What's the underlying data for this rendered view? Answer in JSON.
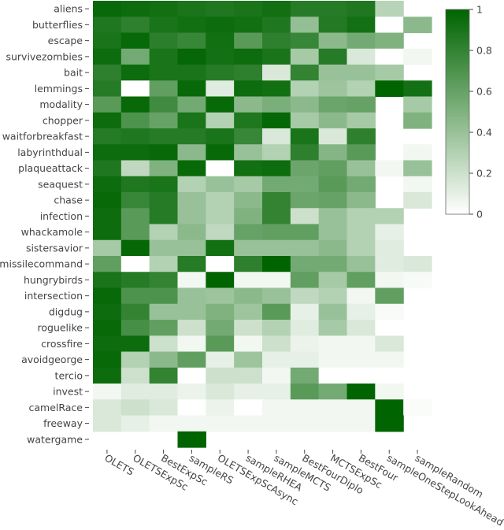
{
  "chart_data": {
    "type": "heatmap",
    "x_categories": [
      "OLETS",
      "OLETSExpSc",
      "BestExpSc",
      "sampleRS",
      "OLETSExpScAsync",
      "sampleRHEA",
      "sampleMCTS",
      "BestFourDiplo",
      "MCTSExpSc",
      "BestFour",
      "sampleOneStepLookAhead",
      "sampleRandom"
    ],
    "y_categories": [
      "aliens",
      "butterflies",
      "escape",
      "survivezombies",
      "bait",
      "lemmings",
      "modality",
      "chopper",
      "waitforbreakfast",
      "labyrinthdual",
      "plaqueattack",
      "seaquest",
      "chase",
      "infection",
      "whackamole",
      "sistersavior",
      "missilecommand",
      "hungrybirds",
      "intersection",
      "digdug",
      "roguelike",
      "crossfire",
      "avoidgeorge",
      "tercio",
      "invest",
      "camelRace",
      "freeway",
      "watergame"
    ],
    "z": [
      [
        0.97,
        0.95,
        0.93,
        0.9,
        0.88,
        0.9,
        0.93,
        0.85,
        0.85,
        0.88,
        0.28,
        null
      ],
      [
        0.88,
        0.82,
        0.9,
        0.93,
        0.95,
        0.93,
        0.88,
        0.42,
        0.86,
        0.92,
        0.0,
        0.45
      ],
      [
        0.9,
        0.97,
        0.83,
        0.78,
        0.93,
        0.65,
        0.82,
        0.78,
        0.45,
        0.55,
        0.5,
        null
      ],
      [
        0.95,
        0.55,
        0.9,
        0.98,
        0.92,
        0.95,
        0.9,
        0.35,
        0.85,
        0.15,
        0.0,
        0.05
      ],
      [
        0.82,
        0.95,
        0.9,
        0.9,
        0.85,
        0.82,
        0.15,
        0.8,
        0.4,
        0.4,
        0.35,
        null
      ],
      [
        0.85,
        0.0,
        0.62,
        0.97,
        0.12,
        0.95,
        0.93,
        0.3,
        0.38,
        0.3,
        1.0,
        0.92
      ],
      [
        0.65,
        0.97,
        0.75,
        0.55,
        0.97,
        0.45,
        0.52,
        0.45,
        0.58,
        0.6,
        null,
        0.35
      ],
      [
        0.95,
        0.7,
        0.6,
        0.9,
        0.3,
        0.88,
        0.98,
        0.35,
        0.45,
        0.35,
        null,
        0.5
      ],
      [
        0.85,
        0.88,
        0.85,
        0.85,
        0.9,
        0.78,
        0.15,
        0.9,
        0.15,
        0.82,
        null,
        null
      ],
      [
        0.95,
        0.95,
        0.97,
        0.45,
        0.97,
        0.4,
        0.3,
        0.82,
        0.48,
        0.65,
        null,
        0.05
      ],
      [
        0.88,
        0.25,
        0.5,
        0.97,
        0.0,
        0.93,
        0.95,
        0.58,
        0.62,
        0.4,
        0.05,
        0.4
      ],
      [
        0.95,
        0.88,
        0.9,
        0.3,
        0.4,
        0.35,
        0.55,
        0.55,
        0.65,
        0.55,
        null,
        0.05
      ],
      [
        0.97,
        0.78,
        0.85,
        0.4,
        0.3,
        0.45,
        0.8,
        0.58,
        0.6,
        0.45,
        null,
        0.15
      ],
      [
        0.95,
        0.65,
        0.85,
        0.4,
        0.3,
        0.5,
        0.8,
        0.2,
        0.4,
        0.3,
        0.3,
        null
      ],
      [
        0.95,
        0.65,
        0.3,
        0.45,
        0.25,
        0.6,
        0.62,
        0.62,
        0.4,
        0.3,
        0.1,
        null
      ],
      [
        0.35,
        0.98,
        0.4,
        0.4,
        0.93,
        0.4,
        0.4,
        0.4,
        0.45,
        0.3,
        0.12,
        null
      ],
      [
        0.62,
        0.0,
        0.3,
        0.85,
        0.0,
        0.82,
        1.0,
        0.55,
        0.55,
        0.4,
        0.12,
        0.15
      ],
      [
        0.9,
        0.85,
        0.8,
        0.05,
        1.0,
        0.05,
        0.05,
        0.62,
        0.35,
        0.62,
        0.05,
        0.03
      ],
      [
        0.97,
        0.7,
        0.7,
        0.4,
        0.38,
        0.45,
        0.4,
        0.25,
        0.3,
        0.05,
        0.62,
        null
      ],
      [
        0.95,
        0.8,
        0.4,
        0.4,
        0.5,
        0.38,
        0.65,
        0.1,
        0.4,
        0.1,
        0.03,
        null
      ],
      [
        0.97,
        0.72,
        0.62,
        0.2,
        0.55,
        0.2,
        0.3,
        0.12,
        0.35,
        0.15,
        0.0,
        null
      ],
      [
        0.95,
        0.95,
        0.2,
        0.05,
        0.65,
        0.05,
        0.2,
        0.08,
        0.05,
        0.05,
        0.15,
        null
      ],
      [
        0.97,
        0.3,
        0.45,
        0.62,
        0.1,
        0.38,
        0.1,
        0.1,
        0.05,
        0.05,
        0.05,
        null
      ],
      [
        0.95,
        0.2,
        0.8,
        0.0,
        0.2,
        0.2,
        0.05,
        0.55,
        0.0,
        0.0,
        0.0,
        null
      ],
      [
        0.05,
        0.12,
        0.12,
        0.08,
        0.15,
        0.1,
        0.1,
        0.65,
        0.55,
        1.0,
        0.05,
        null
      ],
      [
        0.15,
        0.2,
        0.15,
        0.0,
        0.08,
        0.0,
        0.05,
        0.05,
        0.05,
        0.05,
        1.0,
        0.02
      ],
      [
        0.15,
        0.1,
        0.05,
        0.05,
        0.05,
        0.05,
        0.05,
        0.05,
        0.05,
        0.05,
        1.0,
        null
      ],
      [
        null,
        null,
        null,
        1.0,
        null,
        null,
        null,
        null,
        null,
        null,
        null,
        null
      ]
    ],
    "colorbar": {
      "min": 0,
      "max": 1,
      "ticks": [
        "0",
        "0.2",
        "0.4",
        "0.6",
        "0.8",
        "1"
      ],
      "low_color": "#ffffff",
      "high_color": "#006400"
    }
  }
}
